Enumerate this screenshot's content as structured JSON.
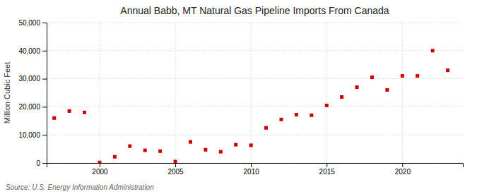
{
  "chart_data": {
    "type": "scatter",
    "title": "Annual Babb, MT Natural Gas Pipeline Imports From Canada",
    "ylabel": "Million Cubic Feet",
    "annotations": [
      "Source: U.S. Energy Information Administration"
    ],
    "x": [
      1997,
      1998,
      1999,
      2000,
      2001,
      2002,
      2003,
      2004,
      2005,
      2006,
      2007,
      2008,
      2009,
      2010,
      2011,
      2012,
      2013,
      2014,
      2015,
      2016,
      2017,
      2018,
      2019,
      2020,
      2021,
      2022,
      2023
    ],
    "values": [
      16000,
      18500,
      18000,
      200,
      2200,
      6000,
      4500,
      4200,
      500,
      7500,
      4700,
      4000,
      6500,
      6300,
      12500,
      15500,
      17200,
      17000,
      20500,
      23500,
      27000,
      30500,
      26000,
      31000,
      31000,
      40000,
      33000
    ],
    "color": "#cc0000",
    "marker": "square",
    "xlim": [
      1996.5,
      2024
    ],
    "xticks": [
      2000,
      2005,
      2010,
      2015,
      2020
    ],
    "ylim": [
      0,
      50000
    ],
    "yticks": [
      0,
      {
        "value": 10000,
        "label": "10,000"
      },
      {
        "value": 20000,
        "label": "20,000"
      },
      {
        "value": 30000,
        "label": "30,000"
      },
      {
        "value": 40000,
        "label": "40,000"
      },
      {
        "value": 50000,
        "label": "50,000"
      }
    ],
    "grid": true
  }
}
